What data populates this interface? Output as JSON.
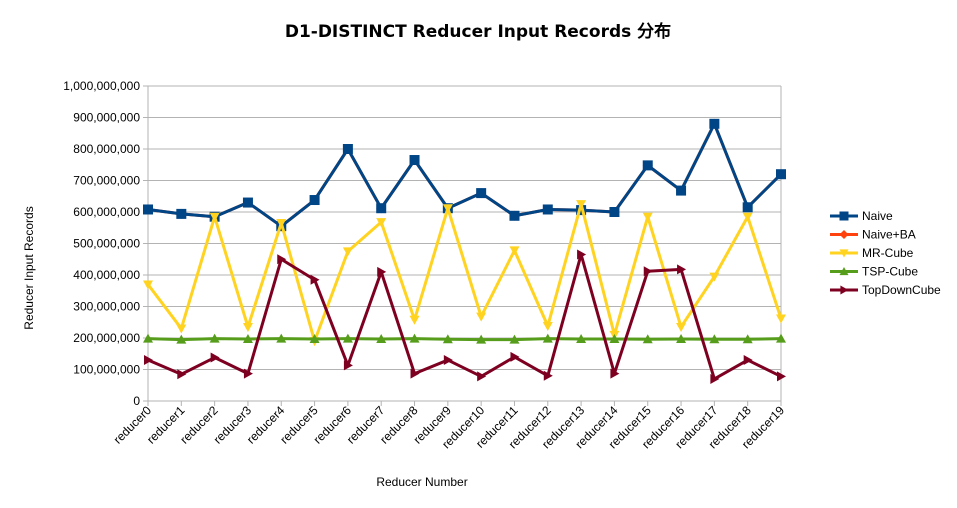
{
  "chart_data": {
    "type": "line",
    "title": "D1-DISTINCT Reducer Input Records  分布",
    "xlabel": "Reducer Number",
    "ylabel": "Reducer Input Records",
    "ylim": [
      0,
      1000000000
    ],
    "yticks": [
      0,
      100000000,
      200000000,
      300000000,
      400000000,
      500000000,
      600000000,
      700000000,
      800000000,
      900000000,
      1000000000
    ],
    "ytick_labels": [
      "0",
      "100,000,000",
      "200,000,000",
      "300,000,000",
      "400,000,000",
      "500,000,000",
      "600,000,000",
      "700,000,000",
      "800,000,000",
      "900,000,000",
      "1,000,000,000"
    ],
    "grid": "horizontal",
    "legend_position": "right",
    "categories": [
      "reducer0",
      "reducer1",
      "reducer2",
      "reducer3",
      "reducer4",
      "reducer5",
      "reducer6",
      "reducer7",
      "reducer8",
      "reducer9",
      "reducer10",
      "reducer11",
      "reducer12",
      "reducer13",
      "reducer14",
      "reducer15",
      "reducer16",
      "reducer17",
      "reducer18",
      "reducer19"
    ],
    "series": [
      {
        "name": "Naive",
        "color": "#004586",
        "marker": "square",
        "values": [
          608000000,
          594000000,
          585000000,
          630000000,
          555000000,
          638000000,
          800000000,
          612000000,
          765000000,
          612000000,
          660000000,
          588000000,
          608000000,
          606000000,
          600000000,
          748000000,
          668000000,
          880000000,
          615000000,
          720000000
        ]
      },
      {
        "name": "Naive+BA",
        "color": "#ff420e",
        "marker": "diamond",
        "values": [
          608000000,
          594000000,
          585000000,
          630000000,
          555000000,
          638000000,
          800000000,
          612000000,
          765000000,
          612000000,
          660000000,
          588000000,
          608000000,
          606000000,
          600000000,
          748000000,
          668000000,
          880000000,
          615000000,
          720000000
        ]
      },
      {
        "name": "MR-Cube",
        "color": "#ffd320",
        "marker": "triangle-down",
        "values": [
          370000000,
          230000000,
          585000000,
          235000000,
          565000000,
          190000000,
          475000000,
          568000000,
          258000000,
          612000000,
          268000000,
          478000000,
          238000000,
          625000000,
          210000000,
          585000000,
          235000000,
          395000000,
          585000000,
          262000000
        ]
      },
      {
        "name": "TSP-Cube",
        "color": "#579d1c",
        "marker": "triangle-up",
        "values": [
          198000000,
          195000000,
          198000000,
          197000000,
          198000000,
          197000000,
          198000000,
          197000000,
          198000000,
          196000000,
          195000000,
          195000000,
          198000000,
          197000000,
          197000000,
          196000000,
          197000000,
          196000000,
          196000000,
          198000000
        ]
      },
      {
        "name": "TopDownCube",
        "color": "#7e0021",
        "marker": "triangle-right",
        "values": [
          130000000,
          85000000,
          138000000,
          87000000,
          450000000,
          385000000,
          113000000,
          410000000,
          87000000,
          130000000,
          78000000,
          140000000,
          80000000,
          465000000,
          87000000,
          412000000,
          418000000,
          70000000,
          130000000,
          78000000
        ]
      }
    ]
  }
}
